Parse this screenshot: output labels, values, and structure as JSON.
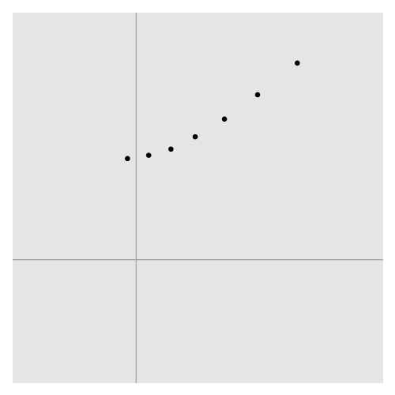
{
  "chart_data": {
    "type": "scatter",
    "title": "",
    "xlabel": "",
    "ylabel": "",
    "xlim": [
      -0.6,
      1.2
    ],
    "ylim": [
      -0.6,
      1.2
    ],
    "grid": false,
    "reference_lines": {
      "x": 0,
      "y": 0
    },
    "colors": {
      "panel": "#e5e5e5",
      "points": "#000000",
      "reference": "#a6a6a6"
    },
    "series": [
      {
        "x": [
          -0.042,
          0.061,
          0.169,
          0.287,
          0.429,
          0.59,
          0.783
        ],
        "y": [
          0.491,
          0.507,
          0.537,
          0.597,
          0.683,
          0.801,
          0.955
        ]
      }
    ]
  }
}
